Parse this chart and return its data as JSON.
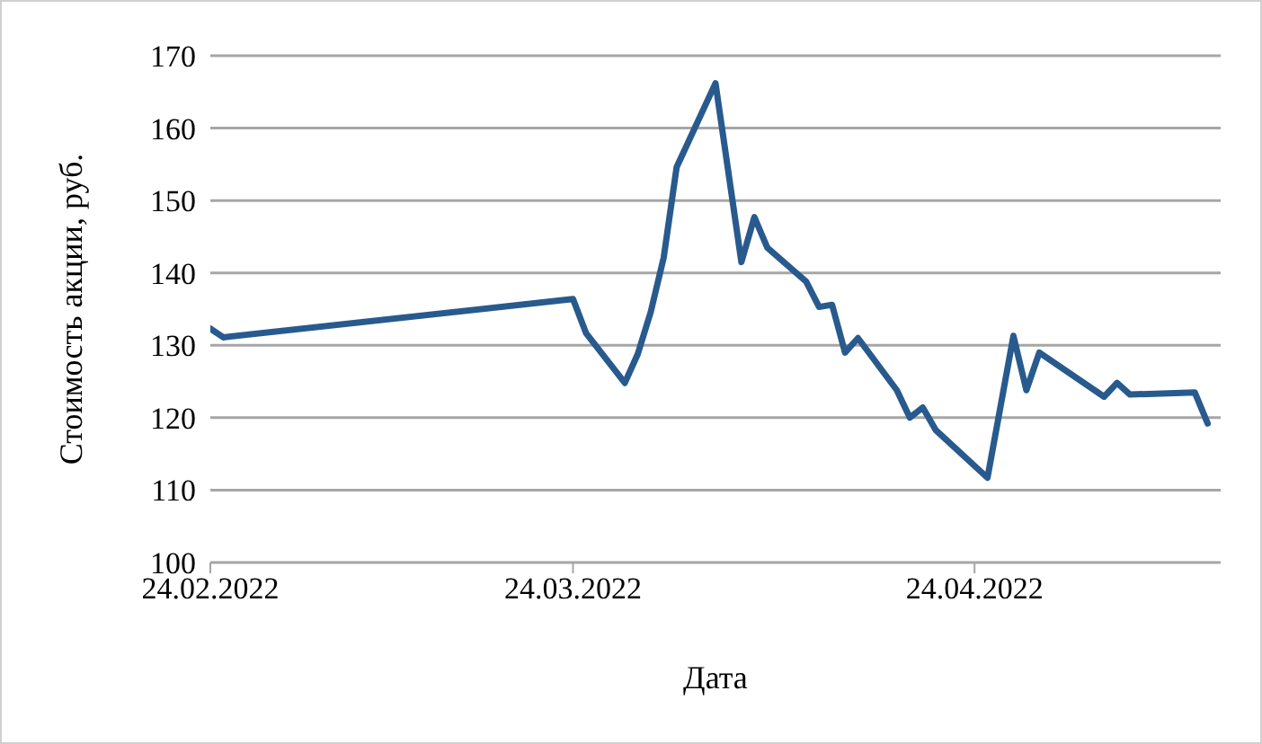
{
  "chart_data": {
    "type": "line",
    "xlabel": "Дата",
    "ylabel": "Стоимость акции, руб.",
    "x": [
      "2022-02-24",
      "2022-02-25",
      "2022-03-24",
      "2022-03-25",
      "2022-03-28",
      "2022-03-29",
      "2022-03-30",
      "2022-03-31",
      "2022-04-01",
      "2022-04-04",
      "2022-04-06",
      "2022-04-07",
      "2022-04-08",
      "2022-04-11",
      "2022-04-12",
      "2022-04-13",
      "2022-04-14",
      "2022-04-15",
      "2022-04-18",
      "2022-04-19",
      "2022-04-20",
      "2022-04-21",
      "2022-04-25",
      "2022-04-27",
      "2022-04-28",
      "2022-04-29",
      "2022-05-04",
      "2022-05-05",
      "2022-05-06",
      "2022-05-11",
      "2022-05-12"
    ],
    "series": [
      {
        "color": "#285a8e",
        "values": [
          132.3,
          131.1,
          136.4,
          131.7,
          124.8,
          128.8,
          134.6,
          142.1,
          154.6,
          166.2,
          141.5,
          147.7,
          143.5,
          138.8,
          135.3,
          135.6,
          129,
          131,
          123.8,
          120,
          121.4,
          118.3,
          111.7,
          131.3,
          123.8,
          129,
          122.9,
          124.8,
          123.2,
          123.5,
          119.2
        ]
      }
    ],
    "xlim": [
      "2022-02-24",
      "2022-05-13"
    ],
    "xticks": [
      {
        "value": "2022-02-24",
        "label": "24.02.2022"
      },
      {
        "value": "2022-03-24",
        "label": "24.03.2022"
      },
      {
        "value": "2022-04-24",
        "label": "24.04.2022"
      }
    ],
    "ylim": [
      100,
      170
    ],
    "yticks": [
      100,
      110,
      120,
      130,
      140,
      150,
      160,
      170
    ],
    "grid": "y",
    "legend": false,
    "marker": "none",
    "line_style": "solid"
  }
}
